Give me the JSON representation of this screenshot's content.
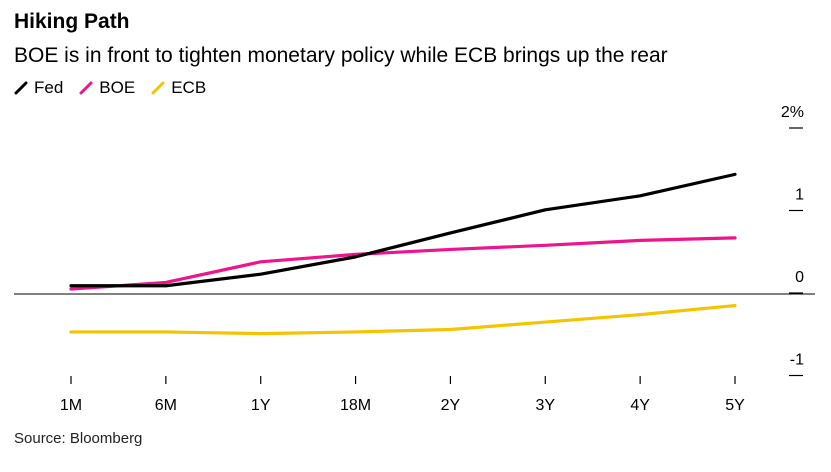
{
  "title": "Hiking Path",
  "subtitle": "BOE is in front to tighten monetary policy while ECB brings up the rear",
  "source": "Source: Bloomberg",
  "chart_data": {
    "type": "line",
    "categories": [
      "1M",
      "6M",
      "1Y",
      "18M",
      "2Y",
      "3Y",
      "4Y",
      "5Y"
    ],
    "y_ticks": [
      {
        "value": 2,
        "label": "2%"
      },
      {
        "value": 1,
        "label": "1"
      },
      {
        "value": 0,
        "label": "0"
      },
      {
        "value": -1,
        "label": "-1"
      }
    ],
    "ylim": [
      -1,
      2
    ],
    "series": [
      {
        "name": "Fed",
        "color": "#000000",
        "values": [
          0.1,
          0.1,
          0.24,
          0.45,
          0.74,
          1.02,
          1.19,
          1.45
        ]
      },
      {
        "name": "BOE",
        "color": "#f0148c",
        "values": [
          0.06,
          0.14,
          0.39,
          0.48,
          0.54,
          0.59,
          0.65,
          0.68
        ]
      },
      {
        "name": "ECB",
        "color": "#f5c400",
        "values": [
          -0.46,
          -0.46,
          -0.48,
          -0.46,
          -0.43,
          -0.34,
          -0.25,
          -0.14
        ]
      }
    ],
    "zero_line": true,
    "legend_position": "top-left"
  }
}
